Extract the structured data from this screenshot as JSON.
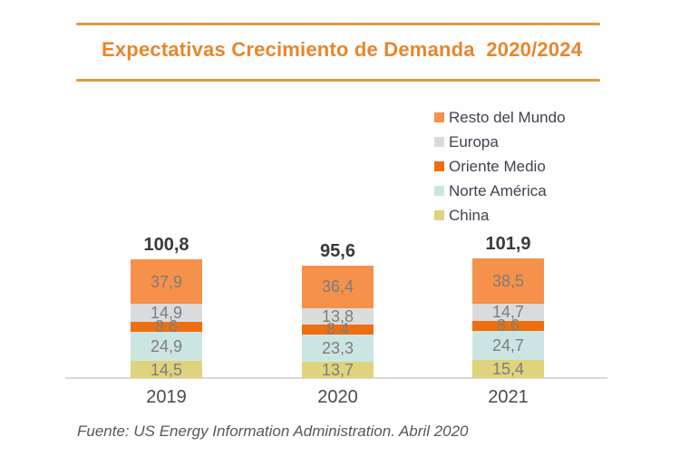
{
  "title": {
    "text": "Expectativas Crecimiento de Demanda  2020/2024"
  },
  "legend": {
    "items": [
      {
        "label": "Resto del Mundo",
        "color": "#f5914a"
      },
      {
        "label": "Europa",
        "color": "#dadbdd"
      },
      {
        "label": "Oriente Medio",
        "color": "#ee6f10"
      },
      {
        "label": "Norte América",
        "color": "#cbe6e2"
      },
      {
        "label": "China",
        "color": "#dfd37d"
      }
    ]
  },
  "footer": {
    "text": "Fuente: US Energy Information Administration. Abril 2020"
  },
  "chart_data": {
    "type": "bar",
    "stacked": true,
    "title": "Expectativas Crecimiento de Demanda 2020/2024",
    "categories": [
      "2019",
      "2020",
      "2021"
    ],
    "series_bottom_to_top": [
      {
        "name": "China",
        "color": "#dfd37d",
        "values": [
          14.5,
          13.7,
          15.4
        ],
        "labels": [
          "14,5",
          "13,7",
          "15,4"
        ]
      },
      {
        "name": "Norte América",
        "color": "#cbe6e2",
        "values": [
          24.9,
          23.3,
          24.7
        ],
        "labels": [
          "24,9",
          "23,3",
          "24,7"
        ]
      },
      {
        "name": "Oriente Medio",
        "color": "#ee6f10",
        "values": [
          8.6,
          8.4,
          8.6
        ],
        "labels": [
          "8,6",
          "8,4",
          "8,6"
        ]
      },
      {
        "name": "Europa",
        "color": "#dadbdd",
        "values": [
          14.9,
          13.8,
          14.7
        ],
        "labels": [
          "14,9",
          "13,8",
          "14,7"
        ]
      },
      {
        "name": "Resto del Mundo",
        "color": "#f5914a",
        "values": [
          37.9,
          36.4,
          38.5
        ],
        "labels": [
          "37,9",
          "36,4",
          "38,5"
        ]
      }
    ],
    "totals": [
      "100,8",
      "95,6",
      "101,9"
    ],
    "xlabel": "",
    "ylabel": "",
    "grid": false,
    "legend_position": "top-right",
    "decimal_separator": ","
  },
  "style": {
    "accent_orange": "#e8862b",
    "rule_orange": "#dd9b43",
    "baseline_gray": "#d9d9d9",
    "value_label_gray": "#7d7d7d",
    "total_label_dark": "#3a3a3a"
  }
}
